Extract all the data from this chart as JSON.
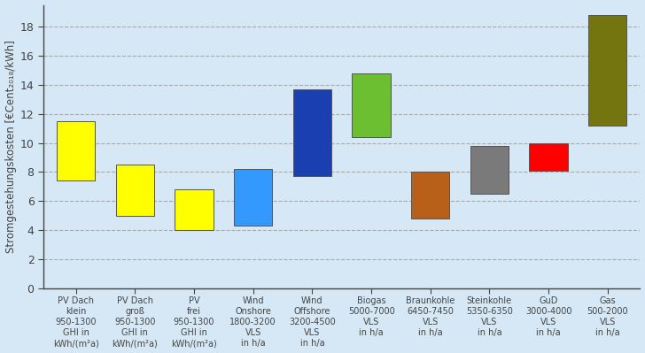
{
  "categories": [
    "PV Dach\nklein\n950-1300\nGHI in\nkWh/(m²a)",
    "PV Dach\ngroß\n950-1300\nGHI in\nkWh/(m²a)",
    "PV\nfrei\n950-1300\nGHI in\nkWh/(m²a)",
    "Wind\nOnshore\n1800-3200\nVLS\nin h/a",
    "Wind\nOffshore\n3200-4500\nVLS\nin h/a",
    "Biogas\n5000-7000\nVLS\nin h/a",
    "Braunkohle\n6450-7450\nVLS\nin h/a",
    "Steinkohle\n5350-6350\nVLS\nin h/a",
    "GuD\n3000-4000\nVLS\nin h/a",
    "Gas\n500-2000\nVLS\nin h/a"
  ],
  "bar_bottoms": [
    7.4,
    5.0,
    4.0,
    4.3,
    7.7,
    10.4,
    4.8,
    6.5,
    8.1,
    11.2
  ],
  "bar_tops": [
    11.5,
    8.5,
    6.8,
    8.2,
    13.7,
    14.8,
    8.0,
    9.8,
    10.0,
    18.8
  ],
  "bar_colors": [
    "#FFFF00",
    "#FFFF00",
    "#FFFF00",
    "#3399FF",
    "#1A3FB0",
    "#6BBF30",
    "#B8601A",
    "#7A7A7A",
    "#FF0000",
    "#757510"
  ],
  "background_color": "#D6E8F5",
  "ylabel_top": "€Cent",
  "ylabel_bot": "/kWh]",
  "ylabel_prefix": "Stromgestehungskosten [",
  "ylim": [
    0,
    19.5
  ],
  "yticks": [
    0,
    2,
    4,
    6,
    8,
    10,
    12,
    14,
    16,
    18
  ],
  "grid_color": "#AAAAAA",
  "axis_color": "#444444",
  "bar_edge_color": "#555555",
  "bar_width": 0.65,
  "tick_label_fontsize": 7.0,
  "ytick_fontsize": 9.0
}
